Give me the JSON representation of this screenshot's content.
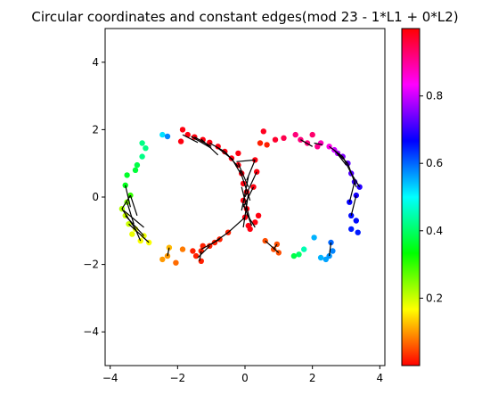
{
  "chart_data": {
    "type": "scatter",
    "title": "Circular coordinates and constant edges(mod 23 - 1*L1 + 0*L2)",
    "xlabel": "",
    "ylabel": "",
    "xlim": [
      -4.15,
      4.15
    ],
    "ylim": [
      -5,
      5
    ],
    "x_ticks": [
      "−4",
      "−2",
      "0",
      "2",
      "4"
    ],
    "y_ticks": [
      "−4",
      "−2",
      "0",
      "2",
      "4"
    ],
    "x_tick_values": [
      -4,
      -2,
      0,
      2,
      4
    ],
    "y_tick_values": [
      -4,
      -2,
      0,
      2,
      4
    ],
    "colorbar": {
      "colormap": "hsv",
      "range": [
        0.0,
        1.0
      ],
      "tick_labels": [
        "0.2",
        "0.4",
        "0.6",
        "0.8"
      ],
      "tick_values": [
        0.2,
        0.4,
        0.6,
        0.8
      ]
    },
    "points": [
      [
        -1.85,
        2.0,
        0.99
      ],
      [
        -1.7,
        1.85,
        0.99
      ],
      [
        -1.5,
        1.78,
        0.99
      ],
      [
        -1.25,
        1.7,
        0.99
      ],
      [
        -1.05,
        1.62,
        0.99
      ],
      [
        -0.8,
        1.5,
        0.99
      ],
      [
        -0.6,
        1.35,
        0.99
      ],
      [
        -0.4,
        1.15,
        0.99
      ],
      [
        -0.2,
        0.95,
        0.99
      ],
      [
        -0.1,
        0.7,
        0.99
      ],
      [
        -0.05,
        0.4,
        0.99
      ],
      [
        0.05,
        0.15,
        0.99
      ],
      [
        -0.05,
        -0.1,
        0.99
      ],
      [
        0.05,
        -0.35,
        0.99
      ],
      [
        0.0,
        -0.6,
        0.99
      ],
      [
        0.1,
        -0.85,
        0.99
      ],
      [
        0.15,
        -0.95,
        0.99
      ],
      [
        0.3,
        -0.75,
        0.99
      ],
      [
        0.4,
        -0.55,
        0.99
      ],
      [
        0.3,
        1.1,
        0.99
      ],
      [
        0.35,
        0.75,
        0.99
      ],
      [
        0.25,
        0.3,
        0.99
      ],
      [
        -0.2,
        1.3,
        0.99
      ],
      [
        -1.9,
        1.65,
        0.99
      ],
      [
        -0.5,
        -1.05,
        0.02
      ],
      [
        -0.75,
        -1.25,
        0.02
      ],
      [
        -1.05,
        -1.45,
        0.02
      ],
      [
        -1.3,
        -1.6,
        0.02
      ],
      [
        -1.45,
        -1.75,
        0.02
      ],
      [
        -1.3,
        -1.9,
        0.02
      ],
      [
        -1.55,
        -1.6,
        0.02
      ],
      [
        0.45,
        1.6,
        0.02
      ],
      [
        0.65,
        1.55,
        0.02
      ],
      [
        0.9,
        1.7,
        0.97
      ],
      [
        1.15,
        1.75,
        0.95
      ],
      [
        1.5,
        1.85,
        0.92
      ],
      [
        1.65,
        1.7,
        0.92
      ],
      [
        1.85,
        1.6,
        0.92
      ],
      [
        2.0,
        1.85,
        0.93
      ],
      [
        2.15,
        1.5,
        0.91
      ],
      [
        2.25,
        1.6,
        0.88
      ],
      [
        2.5,
        1.5,
        0.85
      ],
      [
        2.65,
        1.4,
        0.8
      ],
      [
        2.75,
        1.3,
        0.78
      ],
      [
        2.9,
        1.2,
        0.75
      ],
      [
        3.05,
        1.0,
        0.73
      ],
      [
        3.15,
        0.7,
        0.72
      ],
      [
        3.25,
        0.45,
        0.7
      ],
      [
        3.4,
        0.3,
        0.69
      ],
      [
        3.3,
        0.05,
        0.68
      ],
      [
        3.1,
        -0.15,
        0.67
      ],
      [
        3.15,
        -0.55,
        0.66
      ],
      [
        3.3,
        -0.7,
        0.66
      ],
      [
        3.15,
        -0.95,
        0.65
      ],
      [
        3.35,
        -1.05,
        0.65
      ],
      [
        2.55,
        -1.35,
        0.6
      ],
      [
        2.6,
        -1.6,
        0.58
      ],
      [
        2.5,
        -1.75,
        0.57
      ],
      [
        2.4,
        -1.85,
        0.56
      ],
      [
        2.25,
        -1.8,
        0.55
      ],
      [
        2.05,
        -1.2,
        0.55
      ],
      [
        1.75,
        -1.55,
        0.45
      ],
      [
        1.6,
        -1.7,
        0.4
      ],
      [
        1.45,
        -1.75,
        0.38
      ],
      [
        0.6,
        -1.3,
        0.05
      ],
      [
        0.85,
        -1.55,
        0.05
      ],
      [
        1.0,
        -1.65,
        0.05
      ],
      [
        0.95,
        -1.4,
        0.05
      ],
      [
        -2.45,
        1.85,
        0.52
      ],
      [
        -2.3,
        1.8,
        0.58
      ],
      [
        -2.95,
        1.45,
        0.42
      ],
      [
        -3.05,
        1.2,
        0.42
      ],
      [
        -3.2,
        0.95,
        0.38
      ],
      [
        -3.25,
        0.8,
        0.37
      ],
      [
        -3.5,
        0.65,
        0.36
      ],
      [
        -3.55,
        0.35,
        0.35
      ],
      [
        -3.4,
        0.05,
        0.3
      ],
      [
        -3.5,
        -0.15,
        0.25
      ],
      [
        -3.65,
        -0.35,
        0.22
      ],
      [
        -3.55,
        -0.55,
        0.2
      ],
      [
        -3.45,
        -0.8,
        0.2
      ],
      [
        -3.25,
        -0.95,
        0.18
      ],
      [
        -3.35,
        -1.1,
        0.18
      ],
      [
        -3.0,
        -1.15,
        0.18
      ],
      [
        -2.85,
        -1.35,
        0.17
      ],
      [
        -3.1,
        -1.3,
        0.17
      ],
      [
        -3.05,
        1.6,
        0.42
      ],
      [
        -2.25,
        -1.5,
        0.12
      ],
      [
        -2.3,
        -1.75,
        0.1
      ],
      [
        -2.45,
        -1.85,
        0.1
      ],
      [
        -2.05,
        -1.95,
        0.07
      ],
      [
        -1.85,
        -1.55,
        0.08
      ],
      [
        -1.25,
        -1.45,
        0.02
      ],
      [
        -0.9,
        -1.35,
        0.02
      ],
      [
        0.55,
        1.95,
        0.98
      ]
    ],
    "edges": [
      [
        [
          -1.85,
          1.85
        ],
        [
          -1.4,
          1.62
        ]
      ],
      [
        [
          -1.6,
          1.8
        ],
        [
          -1.0,
          1.45
        ]
      ],
      [
        [
          -1.3,
          1.72
        ],
        [
          -0.8,
          1.25
        ]
      ],
      [
        [
          -1.05,
          1.6
        ],
        [
          -0.6,
          1.35
        ]
      ],
      [
        [
          -0.8,
          1.45
        ],
        [
          -0.35,
          1.1
        ]
      ],
      [
        [
          -0.6,
          1.35
        ],
        [
          -0.2,
          0.9
        ]
      ],
      [
        [
          -0.4,
          1.15
        ],
        [
          -0.1,
          0.65
        ]
      ],
      [
        [
          -0.2,
          1.0
        ],
        [
          0.1,
          0.3
        ]
      ],
      [
        [
          -0.15,
          0.8
        ],
        [
          0.15,
          -0.1
        ]
      ],
      [
        [
          0.1,
          0.6
        ],
        [
          -0.1,
          -0.4
        ]
      ],
      [
        [
          -0.1,
          0.3
        ],
        [
          0.15,
          -0.7
        ]
      ],
      [
        [
          0.1,
          0.1
        ],
        [
          -0.05,
          -0.9
        ]
      ],
      [
        [
          -0.05,
          -0.2
        ],
        [
          0.2,
          -0.85
        ]
      ],
      [
        [
          0.05,
          -0.5
        ],
        [
          0.3,
          -0.9
        ]
      ],
      [
        [
          0.0,
          -0.6
        ],
        [
          -0.5,
          -1.05
        ]
      ],
      [
        [
          -0.5,
          -1.05
        ],
        [
          -1.0,
          -1.4
        ]
      ],
      [
        [
          -0.75,
          -1.25
        ],
        [
          -1.3,
          -1.55
        ]
      ],
      [
        [
          -1.05,
          -1.45
        ],
        [
          -1.4,
          -1.8
        ]
      ],
      [
        [
          -1.3,
          -1.6
        ],
        [
          -1.35,
          -1.9
        ]
      ],
      [
        [
          -0.25,
          1.05
        ],
        [
          0.3,
          1.1
        ]
      ],
      [
        [
          0.3,
          1.1
        ],
        [
          0.05,
          0.5
        ]
      ],
      [
        [
          0.25,
          0.3
        ],
        [
          -0.05,
          -0.3
        ]
      ],
      [
        [
          0.35,
          0.75
        ],
        [
          0.0,
          0.0
        ]
      ],
      [
        [
          -1.5,
          1.78
        ],
        [
          -1.0,
          1.5
        ]
      ],
      [
        [
          2.75,
          1.3
        ],
        [
          3.05,
          1.0
        ]
      ],
      [
        [
          2.9,
          1.2
        ],
        [
          3.15,
          0.7
        ]
      ],
      [
        [
          3.05,
          1.0
        ],
        [
          3.3,
          0.3
        ]
      ],
      [
        [
          3.15,
          0.7
        ],
        [
          3.4,
          0.3
        ]
      ],
      [
        [
          3.25,
          0.45
        ],
        [
          3.1,
          -0.15
        ]
      ],
      [
        [
          2.5,
          1.5
        ],
        [
          2.9,
          1.2
        ]
      ],
      [
        [
          2.65,
          1.4
        ],
        [
          3.0,
          0.95
        ]
      ],
      [
        [
          3.3,
          0.05
        ],
        [
          3.15,
          -0.55
        ]
      ],
      [
        [
          -3.4,
          0.05
        ],
        [
          -3.65,
          -0.35
        ]
      ],
      [
        [
          -3.5,
          -0.15
        ],
        [
          -3.3,
          -0.8
        ]
      ],
      [
        [
          -3.65,
          -0.35
        ],
        [
          -3.25,
          -0.95
        ]
      ],
      [
        [
          -3.55,
          -0.55
        ],
        [
          -3.0,
          -1.15
        ]
      ],
      [
        [
          -3.45,
          -0.8
        ],
        [
          -2.85,
          -1.35
        ]
      ],
      [
        [
          -3.25,
          -0.95
        ],
        [
          -3.1,
          -1.3
        ]
      ],
      [
        [
          -3.55,
          0.35
        ],
        [
          -3.4,
          -0.3
        ]
      ],
      [
        [
          -3.4,
          0.05
        ],
        [
          -3.2,
          -0.55
        ]
      ],
      [
        [
          -3.6,
          -0.4
        ],
        [
          -3.0,
          -0.9
        ]
      ],
      [
        [
          2.55,
          -1.35
        ],
        [
          2.5,
          -1.75
        ]
      ],
      [
        [
          0.6,
          -1.3
        ],
        [
          1.0,
          -1.65
        ]
      ],
      [
        [
          0.85,
          -1.55
        ],
        [
          0.95,
          -1.4
        ]
      ],
      [
        [
          -2.3,
          -1.75
        ],
        [
          -2.25,
          -1.5
        ]
      ],
      [
        [
          2.05,
          1.6
        ],
        [
          2.3,
          1.55
        ]
      ],
      [
        [
          1.65,
          1.7
        ],
        [
          2.0,
          1.5
        ]
      ]
    ]
  }
}
